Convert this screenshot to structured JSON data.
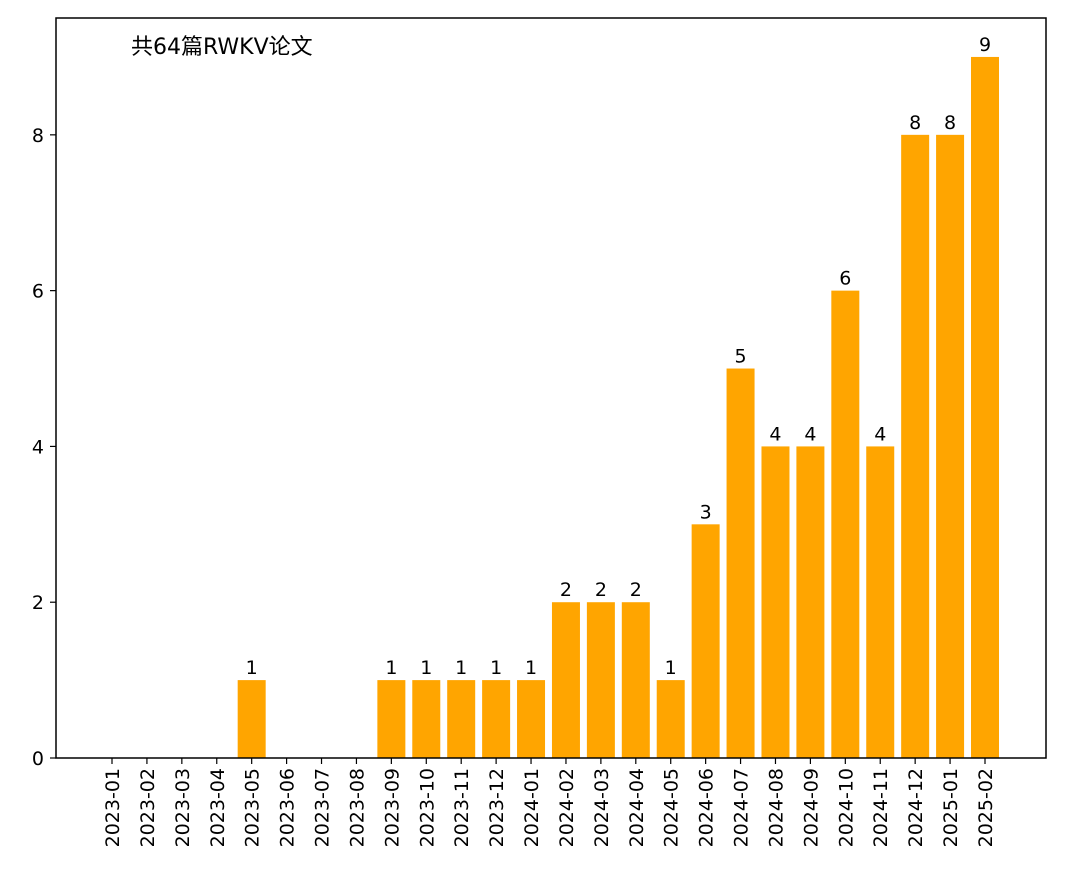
{
  "chart_data": {
    "type": "bar",
    "annotation": "共64篇RWKV论文",
    "categories": [
      "2023-01",
      "2023-02",
      "2023-03",
      "2023-04",
      "2023-05",
      "2023-06",
      "2023-07",
      "2023-08",
      "2023-09",
      "2023-10",
      "2023-11",
      "2023-12",
      "2024-01",
      "2024-02",
      "2024-03",
      "2024-04",
      "2024-05",
      "2024-06",
      "2024-07",
      "2024-08",
      "2024-09",
      "2024-10",
      "2024-11",
      "2024-12",
      "2025-01",
      "2025-02"
    ],
    "values": [
      0,
      0,
      0,
      0,
      1,
      0,
      0,
      0,
      1,
      1,
      1,
      1,
      1,
      2,
      2,
      2,
      1,
      3,
      5,
      4,
      4,
      6,
      4,
      8,
      8,
      9
    ],
    "data_labels": [
      "",
      "",
      "",
      "",
      "1",
      "",
      "",
      "",
      "1",
      "1",
      "1",
      "1",
      "1",
      "2",
      "2",
      "2",
      "1",
      "3",
      "5",
      "4",
      "4",
      "6",
      "4",
      "8",
      "8",
      "9"
    ],
    "ylim": [
      0,
      9.5
    ],
    "yticks": [
      0,
      2,
      4,
      6,
      8
    ],
    "xlabel": "",
    "ylabel": "",
    "grid": false,
    "bar_color": "#FFA500"
  }
}
